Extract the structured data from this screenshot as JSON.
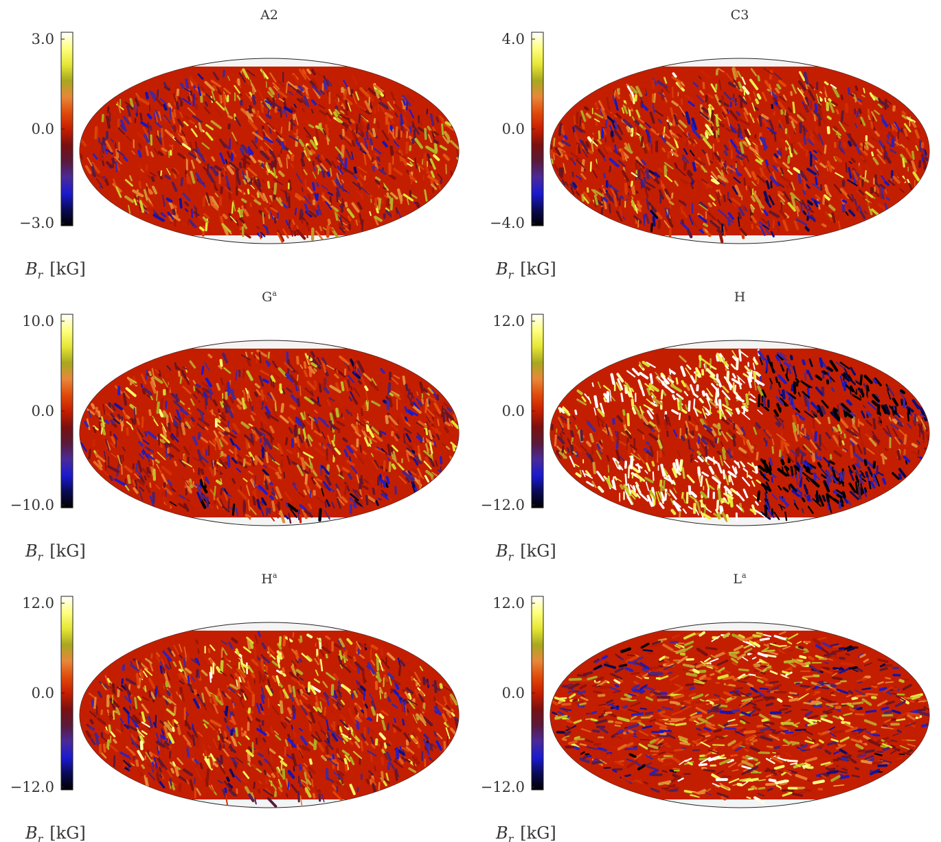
{
  "chart_data": [
    {
      "type": "heatmap",
      "projection": "mollweide",
      "title": "A2",
      "title_sup": "",
      "colorbar": {
        "ticks": [
          "3.0",
          "0.0",
          "−3.0"
        ],
        "label_main": "B",
        "label_sub": "r",
        "label_unit": "[kG]"
      },
      "pattern": "A2"
    },
    {
      "type": "heatmap",
      "projection": "mollweide",
      "title": "C3",
      "title_sup": "",
      "colorbar": {
        "ticks": [
          "4.0",
          "0.0",
          "−4.0"
        ],
        "label_main": "B",
        "label_sub": "r",
        "label_unit": "[kG]"
      },
      "pattern": "C3"
    },
    {
      "type": "heatmap",
      "projection": "mollweide",
      "title": "G",
      "title_sup": "a",
      "colorbar": {
        "ticks": [
          "10.0",
          "0.0",
          "−10.0"
        ],
        "label_main": "B",
        "label_sub": "r",
        "label_unit": "[kG]"
      },
      "pattern": "Ga"
    },
    {
      "type": "heatmap",
      "projection": "mollweide",
      "title": "H",
      "title_sup": "",
      "colorbar": {
        "ticks": [
          "12.0",
          "0.0",
          "−12.0"
        ],
        "label_main": "B",
        "label_sub": "r",
        "label_unit": "[kG]"
      },
      "pattern": "H"
    },
    {
      "type": "heatmap",
      "projection": "mollweide",
      "title": "H",
      "title_sup": "a",
      "colorbar": {
        "ticks": [
          "12.0",
          "0.0",
          "−12.0"
        ],
        "label_main": "B",
        "label_sub": "r",
        "label_unit": "[kG]"
      },
      "pattern": "Ha"
    },
    {
      "type": "heatmap",
      "projection": "mollweide",
      "title": "L",
      "title_sup": "a",
      "colorbar": {
        "ticks": [
          "12.0",
          "0.0",
          "−12.0"
        ],
        "label_main": "B",
        "label_sub": "r",
        "label_unit": "[kG]"
      },
      "pattern": "La"
    }
  ],
  "colormap": [
    "#000000",
    "#0a0a55",
    "#1a1ad0",
    "#4a2a9a",
    "#5a1a3a",
    "#7a1010",
    "#c81e00",
    "#e04a0a",
    "#e8883a",
    "#a8a820",
    "#e6e636",
    "#ffff80",
    "#ffffff"
  ]
}
